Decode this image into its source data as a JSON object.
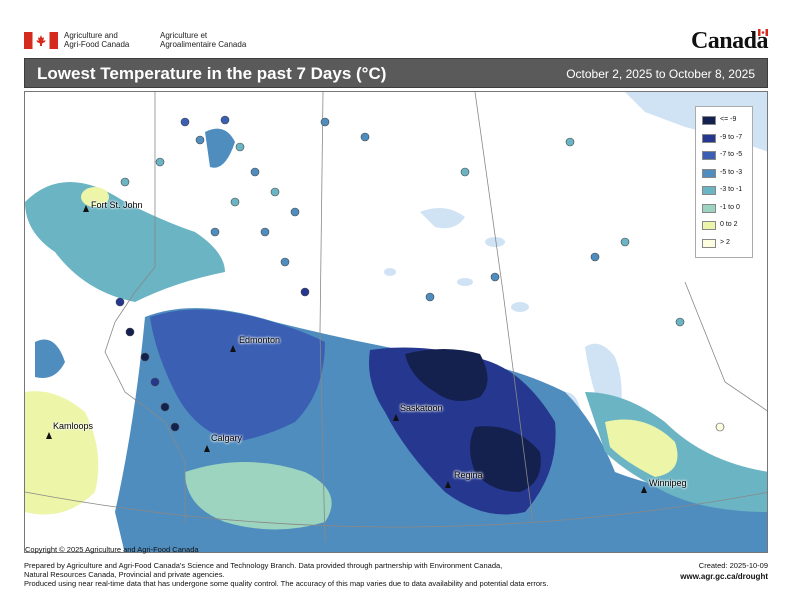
{
  "header": {
    "dept_en_line1": "Agriculture and",
    "dept_en_line2": "Agri-Food Canada",
    "dept_fr_line1": "Agriculture et",
    "dept_fr_line2": "Agroalimentaire Canada",
    "wordmark": "Canada"
  },
  "title_bar": {
    "title": "Lowest Temperature in the past 7 Days (°C)",
    "dates": "October 2, 2025 to October 8, 2025"
  },
  "legend": {
    "items": [
      {
        "label": "<= -9",
        "color": "#14214f"
      },
      {
        "label": "-9 to -7",
        "color": "#25378f"
      },
      {
        "label": "-7 to -5",
        "color": "#3a5fb3"
      },
      {
        "label": "-5 to -3",
        "color": "#4f8dbf"
      },
      {
        "label": "-3 to -1",
        "color": "#6bb4c4"
      },
      {
        "label": "-1 to 0",
        "color": "#9cd4bf"
      },
      {
        "label": "0 to 2",
        "color": "#ecf5a8"
      },
      {
        "label": "> 2",
        "color": "#fdfde0"
      }
    ]
  },
  "cities": [
    {
      "name": "Fort St. John"
    },
    {
      "name": "Edmonton"
    },
    {
      "name": "Kamloops"
    },
    {
      "name": "Calgary"
    },
    {
      "name": "Saskatoon"
    },
    {
      "name": "Regina"
    },
    {
      "name": "Winnipeg"
    }
  ],
  "copyright": "Copyright © 2025 Agriculture and Agri-Food Canada",
  "footer": {
    "line1": "Prepared by Agriculture and Agri-Food Canada's Science and Technology Branch. Data provided through partnership with Environment Canada,",
    "line2": "Natural Resources Canada, Provincial and private agencies.",
    "line3": "Produced using near real-time data that has undergone some quality control. The accuracy of this map varies due to data availability and potential data errors.",
    "created": "Created: 2025-10-09",
    "url": "www.agr.gc.ca/drought"
  },
  "colors": {
    "titlebar_bg": "#5a5a5a",
    "water": "#cfe3f5",
    "land_no_data": "#ffffff",
    "boundary": "#888888"
  }
}
